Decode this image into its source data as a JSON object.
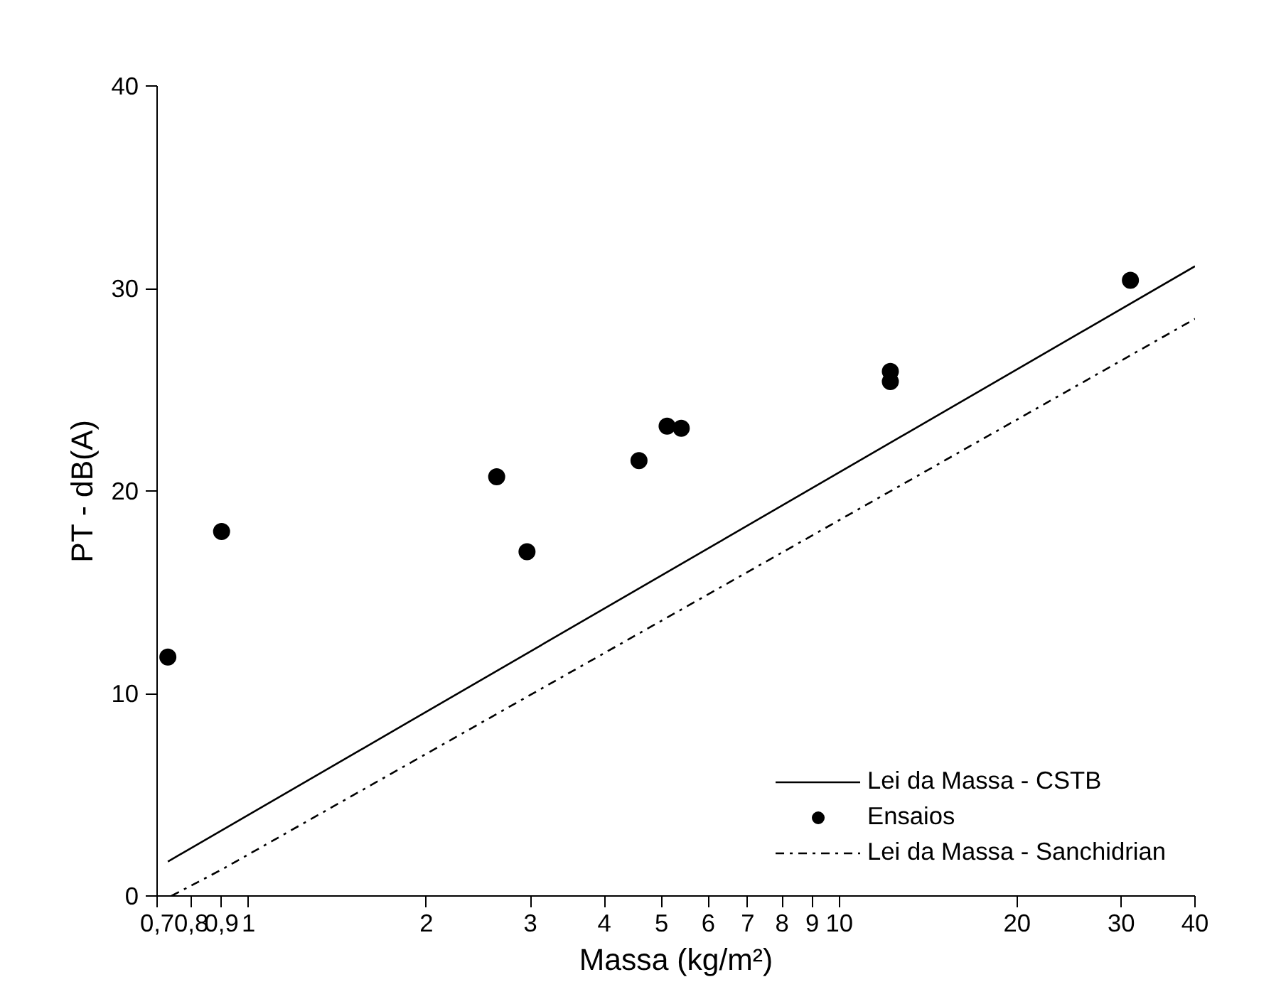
{
  "chart_data": {
    "type": "scatter",
    "xlabel": "Massa (kg/m²)",
    "ylabel": "PT - dB(A)",
    "log": "x",
    "grid": false,
    "legend": "bottom right",
    "xlim": [
      0.7,
      40
    ],
    "ylim": [
      0,
      40
    ],
    "xticks": [
      {
        "value": 0.7,
        "label": "0,7"
      },
      {
        "value": 0.8,
        "label": "0,8"
      },
      {
        "value": 0.9,
        "label": "0,9"
      },
      1,
      2,
      3,
      4,
      5,
      6,
      7,
      8,
      9,
      10,
      20,
      30,
      40
    ],
    "yticks": [
      0,
      10,
      20,
      30,
      40
    ],
    "series": [
      {
        "name": "Lei da Massa - CSTB",
        "type": "line",
        "line_style": "solid",
        "marker": "none",
        "color": "#000000",
        "x": [
          0.73,
          40
        ],
        "values": [
          1.7,
          31.1
        ]
      },
      {
        "name": "Ensaios",
        "marker": "circle",
        "color": "#000000",
        "x": [
          0.73,
          0.9,
          2.63,
          2.96,
          4.58,
          5.11,
          5.4,
          12.2,
          12.2,
          31.1
        ],
        "values": [
          11.8,
          18,
          20.7,
          17,
          21.5,
          23.2,
          23.1,
          25.9,
          25.4,
          30.4
        ]
      },
      {
        "name": "Lei da Massa - Sanchidrian",
        "type": "line",
        "line_style": "dashdot",
        "marker": "none",
        "color": "#000000",
        "x": [
          0.74,
          0.9,
          40
        ],
        "values": [
          0,
          1.3,
          28.5
        ]
      }
    ]
  }
}
